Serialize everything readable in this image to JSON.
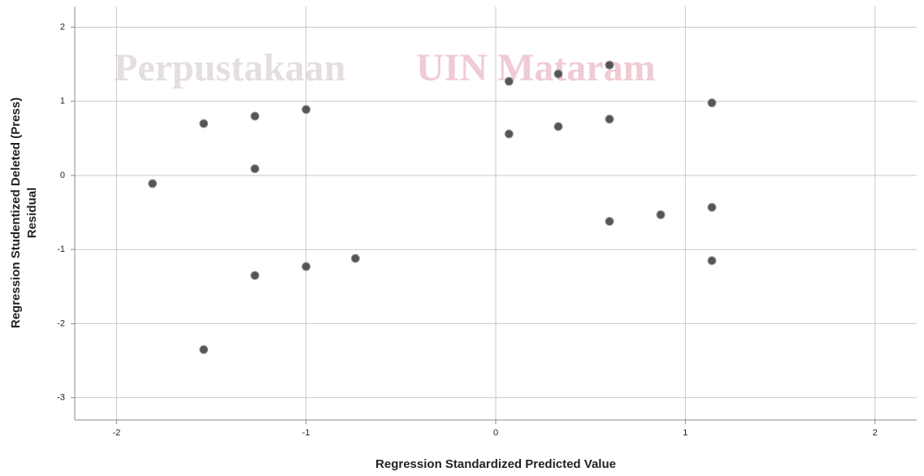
{
  "chart_data": {
    "type": "scatter",
    "watermark": [
      "Perpustakaan",
      "UIN Mataram"
    ],
    "x_label": "Regression Standardized Predicted Value",
    "y_label": [
      "Regression Studentized Deleted (Press)",
      "Residual"
    ],
    "x": [
      -1.81,
      -1.54,
      -1.54,
      -1.27,
      -1.27,
      -1.27,
      -1.0,
      -1.0,
      -0.74,
      0.07,
      0.07,
      0.33,
      0.33,
      0.6,
      0.6,
      0.6,
      0.87,
      1.14,
      1.14,
      1.14
    ],
    "values": [
      -0.11,
      0.7,
      -2.35,
      0.8,
      0.09,
      -1.35,
      0.89,
      -1.23,
      -1.12,
      1.27,
      0.56,
      1.37,
      0.66,
      1.49,
      0.76,
      -0.62,
      -0.53,
      0.98,
      -0.43,
      -1.15
    ],
    "color": "#555555",
    "xlim": [
      -2.22,
      2.22
    ],
    "ylim": [
      -3.3,
      2.28
    ],
    "xticks": [
      -2,
      -1,
      0,
      1,
      2
    ],
    "yticks": [
      2,
      1,
      0,
      -1,
      -2,
      -3
    ],
    "grid": true
  }
}
